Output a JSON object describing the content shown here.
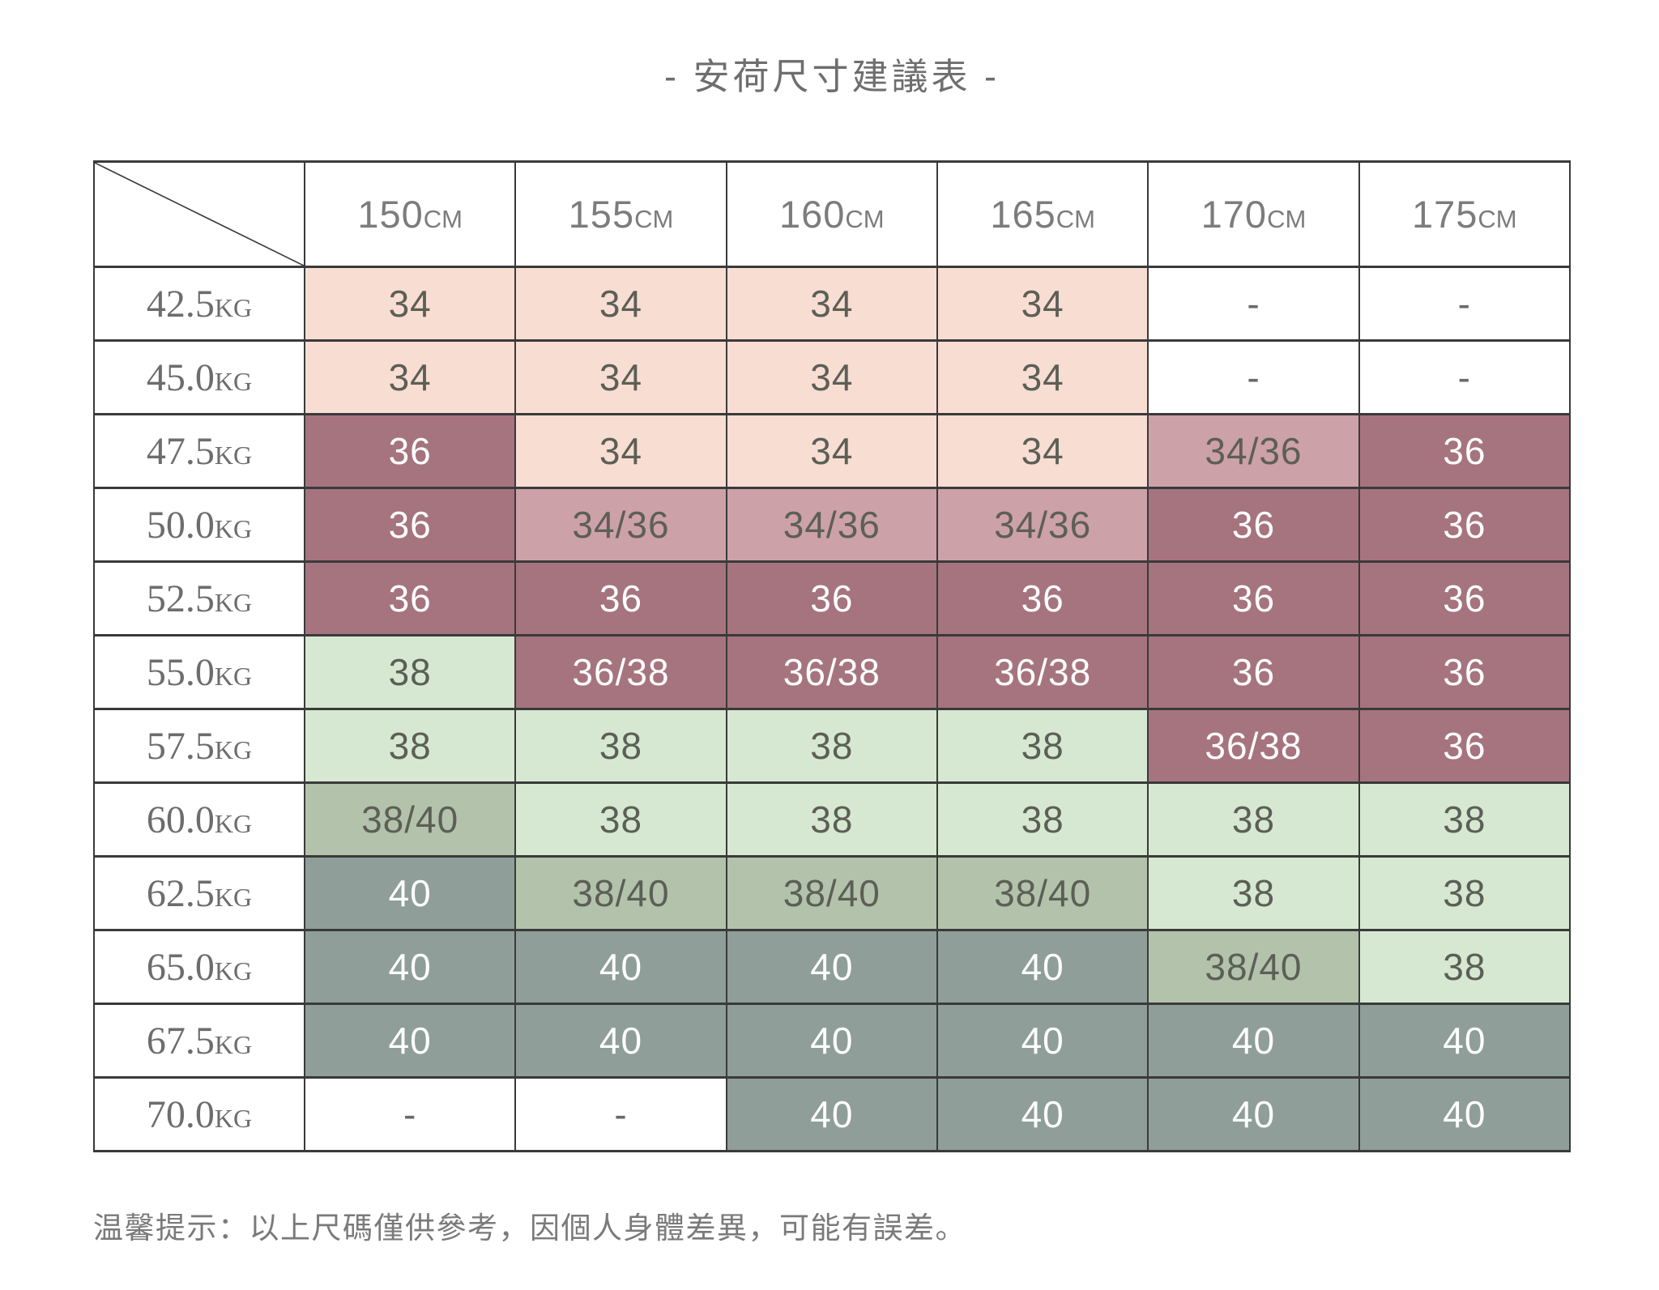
{
  "title": "- 安荷尺寸建議表 -",
  "note": "温馨提示：以上尺碼僅供參考，因個人身體差異，可能有誤差。",
  "palette": {
    "pink": "#f8ddd3",
    "rose": "#cda1a8",
    "mauve": "#a5747f",
    "green": "#d6e8d1",
    "mgreen": "#b3c2ab",
    "dgreen": "#8f9e98",
    "border": "#3a3a3a",
    "text_dark": "#5c5f56",
    "text_light": "#ffffff",
    "label_gray": "#7a7a7a"
  },
  "chart_data": {
    "type": "table",
    "title": "- 安荷尺寸建議表 -",
    "columns": [
      {
        "label": "150",
        "unit": "CM"
      },
      {
        "label": "155",
        "unit": "CM"
      },
      {
        "label": "160",
        "unit": "CM"
      },
      {
        "label": "165",
        "unit": "CM"
      },
      {
        "label": "170",
        "unit": "CM"
      },
      {
        "label": "175",
        "unit": "CM"
      }
    ],
    "rows": [
      {
        "label": "42.5",
        "unit": "KG",
        "cells": [
          {
            "v": "34",
            "c": "pink"
          },
          {
            "v": "34",
            "c": "pink"
          },
          {
            "v": "34",
            "c": "pink"
          },
          {
            "v": "34",
            "c": "pink"
          },
          {
            "v": "-",
            "c": "white"
          },
          {
            "v": "-",
            "c": "white"
          }
        ]
      },
      {
        "label": "45.0",
        "unit": "KG",
        "cells": [
          {
            "v": "34",
            "c": "pink"
          },
          {
            "v": "34",
            "c": "pink"
          },
          {
            "v": "34",
            "c": "pink"
          },
          {
            "v": "34",
            "c": "pink"
          },
          {
            "v": "-",
            "c": "white"
          },
          {
            "v": "-",
            "c": "white"
          }
        ]
      },
      {
        "label": "47.5",
        "unit": "KG",
        "cells": [
          {
            "v": "36",
            "c": "mauve"
          },
          {
            "v": "34",
            "c": "pink"
          },
          {
            "v": "34",
            "c": "pink"
          },
          {
            "v": "34",
            "c": "pink"
          },
          {
            "v": "34/36",
            "c": "rose"
          },
          {
            "v": "36",
            "c": "mauve"
          }
        ]
      },
      {
        "label": "50.0",
        "unit": "KG",
        "cells": [
          {
            "v": "36",
            "c": "mauve"
          },
          {
            "v": "34/36",
            "c": "rose"
          },
          {
            "v": "34/36",
            "c": "rose"
          },
          {
            "v": "34/36",
            "c": "rose"
          },
          {
            "v": "36",
            "c": "mauve"
          },
          {
            "v": "36",
            "c": "mauve"
          }
        ]
      },
      {
        "label": "52.5",
        "unit": "KG",
        "cells": [
          {
            "v": "36",
            "c": "mauve"
          },
          {
            "v": "36",
            "c": "mauve"
          },
          {
            "v": "36",
            "c": "mauve"
          },
          {
            "v": "36",
            "c": "mauve"
          },
          {
            "v": "36",
            "c": "mauve"
          },
          {
            "v": "36",
            "c": "mauve"
          }
        ]
      },
      {
        "label": "55.0",
        "unit": "KG",
        "cells": [
          {
            "v": "38",
            "c": "green"
          },
          {
            "v": "36/38",
            "c": "mauve"
          },
          {
            "v": "36/38",
            "c": "mauve"
          },
          {
            "v": "36/38",
            "c": "mauve"
          },
          {
            "v": "36",
            "c": "mauve"
          },
          {
            "v": "36",
            "c": "mauve"
          }
        ]
      },
      {
        "label": "57.5",
        "unit": "KG",
        "cells": [
          {
            "v": "38",
            "c": "green"
          },
          {
            "v": "38",
            "c": "green"
          },
          {
            "v": "38",
            "c": "green"
          },
          {
            "v": "38",
            "c": "green"
          },
          {
            "v": "36/38",
            "c": "mauve"
          },
          {
            "v": "36",
            "c": "mauve"
          }
        ]
      },
      {
        "label": "60.0",
        "unit": "KG",
        "cells": [
          {
            "v": "38/40",
            "c": "mgreen"
          },
          {
            "v": "38",
            "c": "green"
          },
          {
            "v": "38",
            "c": "green"
          },
          {
            "v": "38",
            "c": "green"
          },
          {
            "v": "38",
            "c": "green"
          },
          {
            "v": "38",
            "c": "green"
          }
        ]
      },
      {
        "label": "62.5",
        "unit": "KG",
        "cells": [
          {
            "v": "40",
            "c": "dgreen"
          },
          {
            "v": "38/40",
            "c": "mgreen"
          },
          {
            "v": "38/40",
            "c": "mgreen"
          },
          {
            "v": "38/40",
            "c": "mgreen"
          },
          {
            "v": "38",
            "c": "green"
          },
          {
            "v": "38",
            "c": "green"
          }
        ]
      },
      {
        "label": "65.0",
        "unit": "KG",
        "cells": [
          {
            "v": "40",
            "c": "dgreen"
          },
          {
            "v": "40",
            "c": "dgreen"
          },
          {
            "v": "40",
            "c": "dgreen"
          },
          {
            "v": "40",
            "c": "dgreen"
          },
          {
            "v": "38/40",
            "c": "mgreen"
          },
          {
            "v": "38",
            "c": "green"
          }
        ]
      },
      {
        "label": "67.5",
        "unit": "KG",
        "cells": [
          {
            "v": "40",
            "c": "dgreen"
          },
          {
            "v": "40",
            "c": "dgreen"
          },
          {
            "v": "40",
            "c": "dgreen"
          },
          {
            "v": "40",
            "c": "dgreen"
          },
          {
            "v": "40",
            "c": "dgreen"
          },
          {
            "v": "40",
            "c": "dgreen"
          }
        ]
      },
      {
        "label": "70.0",
        "unit": "KG",
        "cells": [
          {
            "v": "-",
            "c": "white"
          },
          {
            "v": "-",
            "c": "white"
          },
          {
            "v": "40",
            "c": "dgreen"
          },
          {
            "v": "40",
            "c": "dgreen"
          },
          {
            "v": "40",
            "c": "dgreen"
          },
          {
            "v": "40",
            "c": "dgreen"
          }
        ]
      }
    ]
  }
}
